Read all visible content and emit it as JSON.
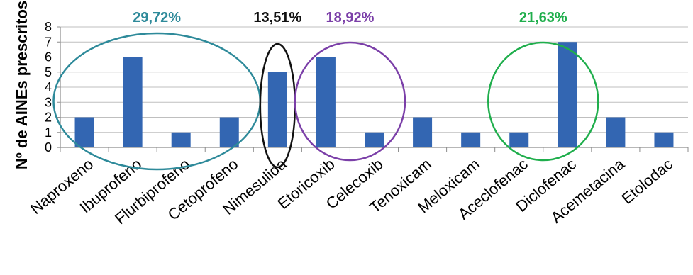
{
  "chart_data": {
    "type": "bar",
    "title": "",
    "xlabel": "",
    "ylabel": "Nº de AINEs prescritos",
    "ylim": [
      0,
      8
    ],
    "yticks": [
      "0",
      "1",
      "2",
      "3",
      "4",
      "5",
      "6",
      "7",
      "8"
    ],
    "grid": true,
    "legend": "none",
    "bar_color": "#3366B2",
    "categories": [
      "Naproxeno",
      "Ibuprofeno",
      "Flurbiprofeno",
      "Cetoprofeno",
      "Nimesulida",
      "Etoricoxib",
      "Celecoxib",
      "Tenoxicam",
      "Meloxicam",
      "Aceclofenac",
      "Diclofenac",
      "Acemetacina",
      "Etolodac"
    ],
    "values": [
      2,
      6,
      1,
      2,
      5,
      6,
      1,
      2,
      1,
      1,
      7,
      2,
      1
    ],
    "groups": [
      {
        "label": "29,72%",
        "color": "#2E8A9A",
        "from": 0,
        "to": 3
      },
      {
        "label": "13,51%",
        "color": "#111111",
        "from": 4,
        "to": 4
      },
      {
        "label": "18,92%",
        "color": "#7B3FA8",
        "from": 5,
        "to": 6
      },
      {
        "label": "21,63%",
        "color": "#1FAE4C",
        "from": 9,
        "to": 10
      }
    ]
  }
}
